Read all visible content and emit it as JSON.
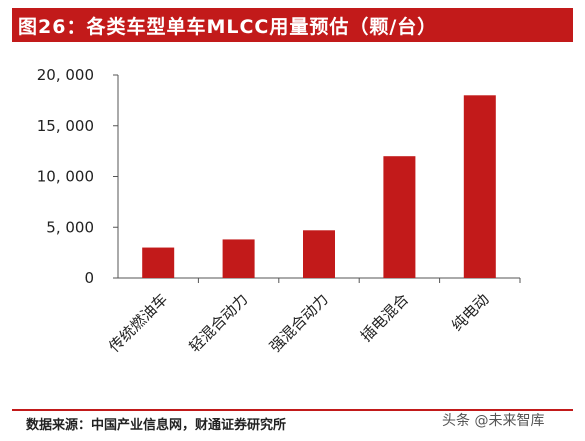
{
  "header": {
    "title": "图26：各类车型单车MLCC用量预估（颗/台）"
  },
  "footer": {
    "source": "数据来源：中国产业信息网，财通证券研究所",
    "watermark": "头条 @未来智库"
  },
  "colors": {
    "accent": "#c21a1a",
    "bar": "#c21a1a"
  },
  "chart_data": {
    "type": "bar",
    "title": "",
    "xlabel": "",
    "ylabel": "",
    "categories": [
      "传统燃油车",
      "轻混合动力",
      "强混合动力",
      "插电混合",
      "纯电动"
    ],
    "values": [
      3000,
      3800,
      4700,
      12000,
      18000
    ],
    "ylim": [
      0,
      20000
    ],
    "yticks": [
      0,
      5000,
      10000,
      15000,
      20000
    ],
    "ytick_labels": [
      "0",
      "5, 000",
      "10, 000",
      "15, 000",
      "20, 000"
    ],
    "grid": false,
    "legend": "none"
  }
}
